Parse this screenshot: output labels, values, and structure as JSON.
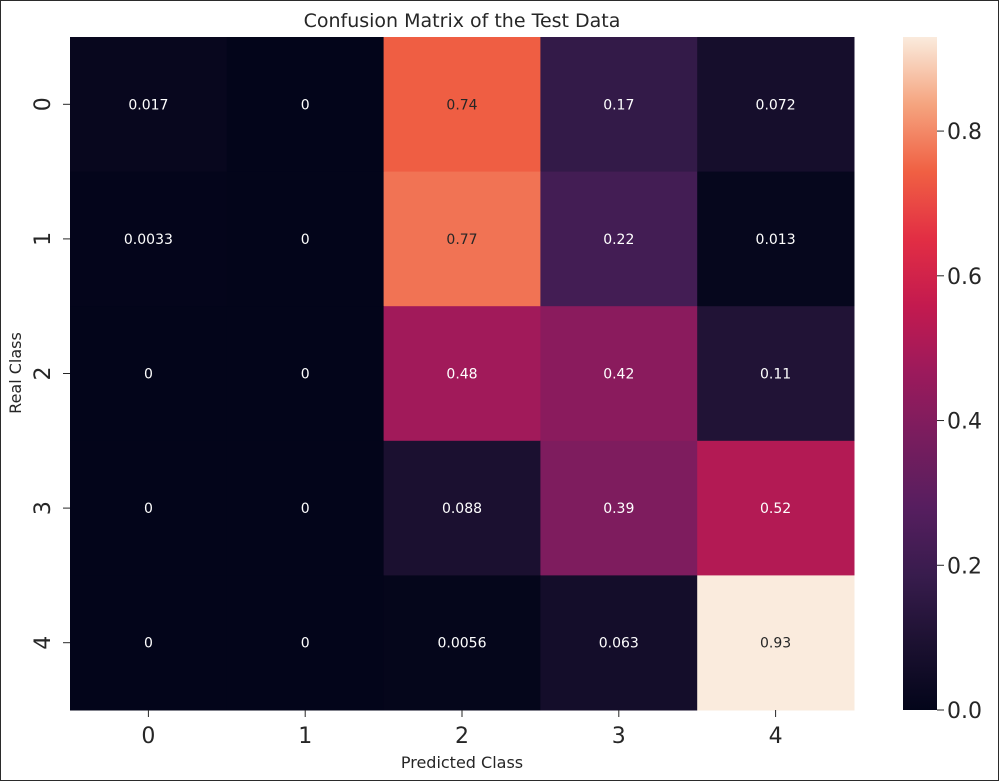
{
  "chart_data": {
    "type": "heatmap",
    "title": "Confusion Matrix of the Test Data",
    "xlabel": "Predicted Class",
    "ylabel": "Real Class",
    "x_categories": [
      "0",
      "1",
      "2",
      "3",
      "4"
    ],
    "y_categories": [
      "0",
      "1",
      "2",
      "3",
      "4"
    ],
    "values": [
      [
        0.017,
        0,
        0.74,
        0.17,
        0.072
      ],
      [
        0.0033,
        0,
        0.77,
        0.22,
        0.013
      ],
      [
        0,
        0,
        0.48,
        0.42,
        0.11
      ],
      [
        0,
        0,
        0.088,
        0.39,
        0.52
      ],
      [
        0,
        0,
        0.0056,
        0.063,
        0.93
      ]
    ],
    "annotations": [
      [
        "0.017",
        "0",
        "0.74",
        "0.17",
        "0.072"
      ],
      [
        "0.0033",
        "0",
        "0.77",
        "0.22",
        "0.013"
      ],
      [
        "0",
        "0",
        "0.48",
        "0.42",
        "0.11"
      ],
      [
        "0",
        "0",
        "0.088",
        "0.39",
        "0.52"
      ],
      [
        "0",
        "0",
        "0.0056",
        "0.063",
        "0.93"
      ]
    ],
    "colormap": "rocket",
    "colorbar": {
      "range": [
        0,
        0.93
      ],
      "ticks": [
        0.0,
        0.2,
        0.4,
        0.6,
        0.8
      ],
      "tick_labels": [
        "0.0",
        "0.2",
        "0.4",
        "0.6",
        "0.8"
      ]
    },
    "grid": false
  }
}
